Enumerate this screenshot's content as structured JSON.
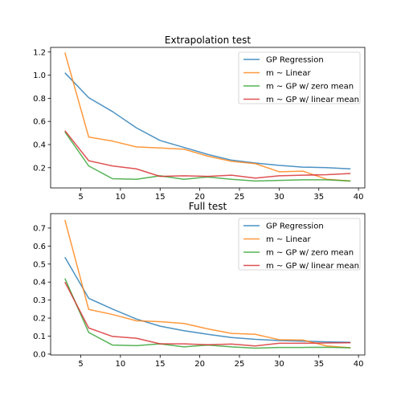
{
  "chart_data": [
    {
      "type": "line",
      "title": "Extrapolation test",
      "xlabel": "",
      "ylabel": "",
      "xlim": [
        1.2,
        40.8
      ],
      "ylim": [
        0.025,
        1.24
      ],
      "xticks": [
        5,
        10,
        15,
        20,
        25,
        30,
        35,
        40
      ],
      "yticks": [
        0.2,
        0.4,
        0.6,
        0.8,
        1.0,
        1.2
      ],
      "ytick_labels": [
        "0.2",
        "0.4",
        "0.6",
        "0.8",
        "1.0",
        "1.2"
      ],
      "grid": false,
      "legend_position": "top-right",
      "x": [
        3,
        6,
        9,
        12,
        15,
        18,
        21,
        24,
        27,
        30,
        33,
        36,
        39
      ],
      "series": [
        {
          "name": "GP Regression",
          "color": "#1f77b4",
          "values": [
            1.02,
            0.805,
            0.685,
            0.545,
            0.435,
            0.375,
            0.315,
            0.265,
            0.24,
            0.22,
            0.205,
            0.2,
            0.19
          ]
        },
        {
          "name": "m ~ Linear",
          "color": "#ff7f0e",
          "values": [
            1.195,
            0.465,
            0.43,
            0.38,
            0.37,
            0.36,
            0.3,
            0.255,
            0.235,
            0.165,
            0.17,
            0.1,
            0.085
          ]
        },
        {
          "name": "m ~ GP w/ zero mean",
          "color": "#2ca02c",
          "values": [
            0.51,
            0.215,
            0.105,
            0.1,
            0.13,
            0.1,
            0.12,
            0.1,
            0.085,
            0.09,
            0.095,
            0.095,
            0.085
          ]
        },
        {
          "name": "m ~ GP w/ linear mean",
          "color": "#d62728",
          "values": [
            0.52,
            0.26,
            0.215,
            0.19,
            0.125,
            0.13,
            0.125,
            0.135,
            0.11,
            0.13,
            0.135,
            0.14,
            0.15
          ]
        }
      ]
    },
    {
      "type": "line",
      "title": "Full test",
      "xlabel": "",
      "ylabel": "",
      "xlim": [
        1.2,
        40.8
      ],
      "ylim": [
        -0.005,
        0.78
      ],
      "xticks": [
        5,
        10,
        15,
        20,
        25,
        30,
        35,
        40
      ],
      "yticks": [
        0.0,
        0.1,
        0.2,
        0.3,
        0.4,
        0.5,
        0.6,
        0.7
      ],
      "ytick_labels": [
        "0.0",
        "0.1",
        "0.2",
        "0.3",
        "0.4",
        "0.5",
        "0.6",
        "0.7"
      ],
      "grid": false,
      "legend_position": "top-right",
      "x": [
        3,
        6,
        9,
        12,
        15,
        18,
        21,
        24,
        27,
        30,
        33,
        36,
        39
      ],
      "series": [
        {
          "name": "GP Regression",
          "color": "#1f77b4",
          "values": [
            0.538,
            0.31,
            0.25,
            0.195,
            0.155,
            0.13,
            0.11,
            0.092,
            0.082,
            0.075,
            0.072,
            0.068,
            0.065
          ]
        },
        {
          "name": "m ~ Linear",
          "color": "#ff7f0e",
          "values": [
            0.745,
            0.248,
            0.22,
            0.185,
            0.18,
            0.17,
            0.14,
            0.115,
            0.11,
            0.08,
            0.078,
            0.045,
            0.035
          ]
        },
        {
          "name": "m ~ GP w/ zero mean",
          "color": "#2ca02c",
          "values": [
            0.42,
            0.12,
            0.05,
            0.047,
            0.057,
            0.04,
            0.05,
            0.04,
            0.033,
            0.037,
            0.037,
            0.038,
            0.035
          ]
        },
        {
          "name": "m ~ GP w/ linear mean",
          "color": "#d62728",
          "values": [
            0.4,
            0.145,
            0.098,
            0.088,
            0.057,
            0.057,
            0.052,
            0.056,
            0.045,
            0.06,
            0.06,
            0.062,
            0.063
          ]
        }
      ]
    }
  ]
}
